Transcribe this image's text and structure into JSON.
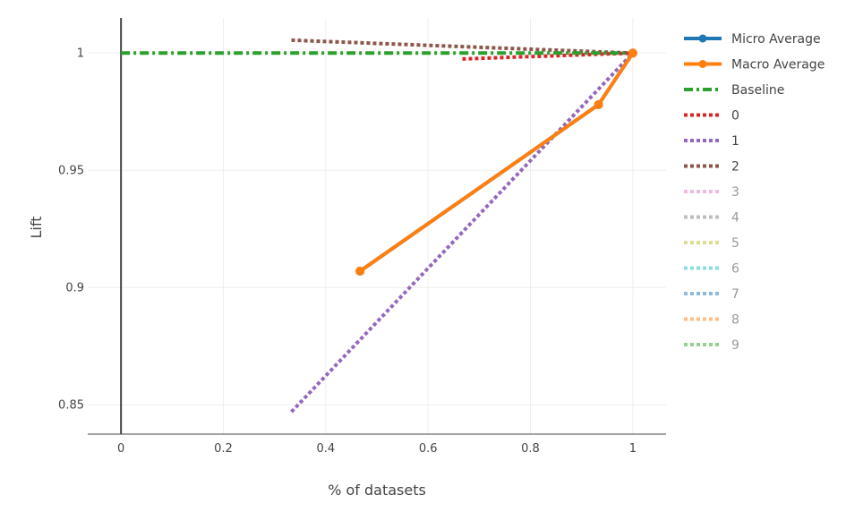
{
  "chart_data": {
    "type": "line",
    "title": "",
    "xlabel": "% of datasets",
    "ylabel": "Lift",
    "xlim": [
      -0.065,
      1.065
    ],
    "ylim": [
      0.8375,
      1.015
    ],
    "xticks": [
      0,
      0.2,
      0.4,
      0.6,
      0.8,
      1
    ],
    "xtick_labels": [
      "0",
      "0.2",
      "0.4",
      "0.6",
      "0.8",
      "1"
    ],
    "yticks": [
      0.85,
      0.9,
      0.95,
      1
    ],
    "ytick_labels": [
      "0.85",
      "0.9",
      "0.95",
      "1"
    ],
    "grid": true,
    "legend_position": "right",
    "series": [
      {
        "name": "Micro Average",
        "color": "#1f77b4",
        "style": "solid",
        "markers": true,
        "visible": true,
        "x": [
          0.467,
          0.933,
          1.0
        ],
        "y": [
          0.907,
          0.978,
          1.0
        ]
      },
      {
        "name": "Macro Average",
        "color": "#ff7f0e",
        "style": "solid",
        "markers": true,
        "visible": true,
        "x": [
          0.467,
          0.933,
          1.0
        ],
        "y": [
          0.907,
          0.978,
          1.0
        ]
      },
      {
        "name": "Baseline",
        "color": "#2ca02c",
        "style": "dashdot",
        "markers": false,
        "visible": true,
        "x": [
          0.0,
          1.0
        ],
        "y": [
          1.0,
          1.0
        ]
      },
      {
        "name": "0",
        "color": "#d62728",
        "style": "dot",
        "markers": false,
        "visible": true,
        "x": [
          0.667,
          1.0
        ],
        "y": [
          0.9975,
          1.0
        ]
      },
      {
        "name": "1",
        "color": "#9467bd",
        "style": "dot",
        "markers": false,
        "visible": true,
        "x": [
          0.333,
          1.0
        ],
        "y": [
          0.847,
          1.0
        ]
      },
      {
        "name": "2",
        "color": "#8c564b",
        "style": "dot",
        "markers": false,
        "visible": true,
        "x": [
          0.333,
          1.0
        ],
        "y": [
          1.0055,
          1.0
        ]
      },
      {
        "name": "3",
        "color": "#e377c2",
        "style": "dot",
        "markers": false,
        "visible": false,
        "x": [],
        "y": []
      },
      {
        "name": "4",
        "color": "#7f7f7f",
        "style": "dot",
        "markers": false,
        "visible": false,
        "x": [],
        "y": []
      },
      {
        "name": "5",
        "color": "#bcbd22",
        "style": "dot",
        "markers": false,
        "visible": false,
        "x": [],
        "y": []
      },
      {
        "name": "6",
        "color": "#17becf",
        "style": "dot",
        "markers": false,
        "visible": false,
        "x": [],
        "y": []
      },
      {
        "name": "7",
        "color": "#1f77b4",
        "style": "dot",
        "markers": false,
        "visible": false,
        "x": [],
        "y": []
      },
      {
        "name": "8",
        "color": "#ff7f0e",
        "style": "dot",
        "markers": false,
        "visible": false,
        "x": [],
        "y": []
      },
      {
        "name": "9",
        "color": "#2ca02c",
        "style": "dot",
        "markers": false,
        "visible": false,
        "x": [],
        "y": []
      }
    ]
  }
}
